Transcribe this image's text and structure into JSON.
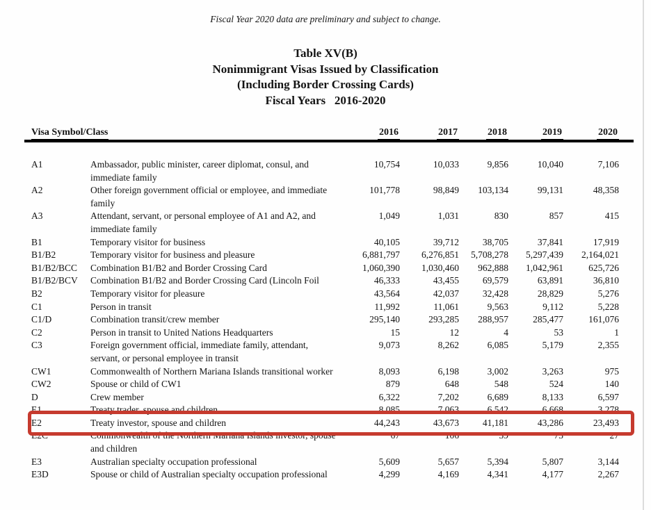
{
  "note": "Fiscal Year 2020 data are preliminary and subject to change.",
  "title": {
    "line1": "Table XV(B)",
    "line2": "Nonimmigrant Visas Issued by Classification",
    "line3": "(Including Border Crossing Cards)",
    "line4": "Fiscal Years   2016-2020"
  },
  "highlight": {
    "color": "#c63a2e",
    "highlighted_symbol": "E2"
  },
  "table": {
    "header": {
      "symbol_col": "Visa Symbol/Class",
      "years": [
        "2016",
        "2017",
        "2018",
        "2019",
        "2020"
      ]
    },
    "rows": [
      {
        "symbol": "A1",
        "description": "Ambassador, public minister, career diplomat, consul, and immediate family",
        "values": [
          "10,754",
          "10,033",
          "9,856",
          "10,040",
          "7,106"
        ]
      },
      {
        "symbol": "A2",
        "description": "Other foreign government official or employee, and immediate family",
        "values": [
          "101,778",
          "98,849",
          "103,134",
          "99,131",
          "48,358"
        ]
      },
      {
        "symbol": "A3",
        "description": "Attendant, servant, or personal employee of A1 and A2, and immediate family",
        "values": [
          "1,049",
          "1,031",
          "830",
          "857",
          "415"
        ]
      },
      {
        "symbol": "B1",
        "description": "Temporary visitor for business",
        "values": [
          "40,105",
          "39,712",
          "38,705",
          "37,841",
          "17,919"
        ]
      },
      {
        "symbol": "B1/B2",
        "description": "Temporary visitor for business and pleasure",
        "values": [
          "6,881,797",
          "6,276,851",
          "5,708,278",
          "5,297,439",
          "2,164,021"
        ]
      },
      {
        "symbol": "B1/B2/BCC",
        "description": "Combination B1/B2 and Border Crossing Card",
        "values": [
          "1,060,390",
          "1,030,460",
          "962,888",
          "1,042,961",
          "625,726"
        ]
      },
      {
        "symbol": "B1/B2/BCV",
        "description": "Combination B1/B2 and Border Crossing Card (Lincoln Foil",
        "values": [
          "46,333",
          "43,455",
          "69,579",
          "63,891",
          "36,810"
        ]
      },
      {
        "symbol": "B2",
        "description": "Temporary visitor for pleasure",
        "values": [
          "43,564",
          "42,037",
          "32,428",
          "28,829",
          "5,276"
        ]
      },
      {
        "symbol": "C1",
        "description": "Person in transit",
        "values": [
          "11,992",
          "11,061",
          "9,563",
          "9,112",
          "5,228"
        ]
      },
      {
        "symbol": "C1/D",
        "description": "Combination transit/crew member",
        "values": [
          "295,140",
          "293,285",
          "288,957",
          "285,477",
          "161,076"
        ]
      },
      {
        "symbol": "C2",
        "description": "Person in transit to United Nations Headquarters",
        "values": [
          "15",
          "12",
          "4",
          "53",
          "1"
        ]
      },
      {
        "symbol": "C3",
        "description": "Foreign government official, immediate family, attendant, servant, or personal employee in transit",
        "values": [
          "9,073",
          "8,262",
          "6,085",
          "5,179",
          "2,355"
        ]
      },
      {
        "symbol": "CW1",
        "description": "Commonwealth of Northern Mariana Islands transitional worker",
        "values": [
          "8,093",
          "6,198",
          "3,002",
          "3,263",
          "975"
        ]
      },
      {
        "symbol": "CW2",
        "description": "Spouse or child of CW1",
        "values": [
          "879",
          "648",
          "548",
          "524",
          "140"
        ]
      },
      {
        "symbol": "D",
        "description": "Crew member",
        "values": [
          "6,322",
          "7,202",
          "6,689",
          "8,133",
          "6,597"
        ]
      },
      {
        "symbol": "E1",
        "description": "Treaty trader, spouse and children",
        "values": [
          "8,085",
          "7,063",
          "6,542",
          "6,668",
          "3,278"
        ]
      },
      {
        "symbol": "E2",
        "description": "Treaty investor, spouse and children",
        "values": [
          "44,243",
          "43,673",
          "41,181",
          "43,286",
          "23,493"
        ],
        "highlighted": true
      },
      {
        "symbol": "E2C",
        "description": "Commonwealth of the Northern Mariana Islands investor, spouse and children",
        "values": [
          "67",
          "106",
          "39",
          "73",
          "27"
        ]
      },
      {
        "symbol": "E3",
        "description": "Australian specialty occupation professional",
        "values": [
          "5,609",
          "5,657",
          "5,394",
          "5,807",
          "3,144"
        ]
      },
      {
        "symbol": "E3D",
        "description": "Spouse or child of Australian specialty occupation professional",
        "values": [
          "4,299",
          "4,169",
          "4,341",
          "4,177",
          "2,267"
        ]
      }
    ]
  }
}
